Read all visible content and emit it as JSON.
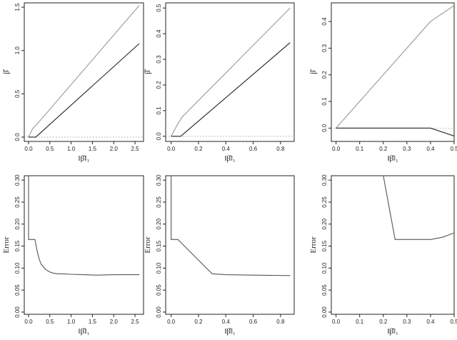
{
  "chart_data": [
    {
      "type": "line",
      "ylabel": "β̂",
      "xlabel": "‖β̂‖₁",
      "xlim": [
        -0.1,
        2.7
      ],
      "ylim": [
        -0.05,
        1.55
      ],
      "xticks": [
        "0.0",
        "0.5",
        "1.0",
        "1.5",
        "2.0",
        "2.5"
      ],
      "yticks": [
        "0.0",
        "0.5",
        "1.0",
        "1.5"
      ],
      "zero_line": true,
      "series": [
        {
          "color": "#999999",
          "x": [
            0.0,
            0.1,
            0.2,
            2.6
          ],
          "y": [
            0.0,
            0.1,
            0.15,
            1.52
          ]
        },
        {
          "color": "#222222",
          "x": [
            0.0,
            0.17,
            2.6
          ],
          "y": [
            0.0,
            0.0,
            1.08
          ]
        }
      ]
    },
    {
      "type": "line",
      "ylabel": "β̂",
      "xlabel": "‖β̂‖₁",
      "xlim": [
        -0.04,
        0.9
      ],
      "ylim": [
        -0.02,
        0.52
      ],
      "xticks": [
        "0.0",
        "0.2",
        "0.4",
        "0.6",
        "0.8"
      ],
      "yticks": [
        "0.0",
        "0.1",
        "0.2",
        "0.3",
        "0.4",
        "0.5"
      ],
      "zero_line": true,
      "series": [
        {
          "color": "#999999",
          "x": [
            0.0,
            0.04,
            0.08,
            0.87
          ],
          "y": [
            0.0,
            0.04,
            0.075,
            0.5
          ]
        },
        {
          "color": "#222222",
          "x": [
            0.0,
            0.07,
            0.87
          ],
          "y": [
            0.0,
            0.0,
            0.365
          ]
        }
      ]
    },
    {
      "type": "line",
      "ylabel": "β̂",
      "xlabel": "‖β̂‖₁",
      "xlim": [
        -0.02,
        0.5
      ],
      "ylim": [
        -0.05,
        0.47
      ],
      "xticks": [
        "0.0",
        "0.1",
        "0.2",
        "0.3",
        "0.4",
        "0.5"
      ],
      "yticks": [
        "0.0",
        "0.1",
        "0.2",
        "0.3",
        "0.4"
      ],
      "zero_line": true,
      "series": [
        {
          "color": "#999999",
          "x": [
            0.0,
            0.4,
            0.5
          ],
          "y": [
            0.0,
            0.4,
            0.46
          ]
        },
        {
          "color": "#222222",
          "x": [
            0.0,
            0.4,
            0.5
          ],
          "y": [
            0.0,
            0.0,
            -0.03
          ]
        }
      ]
    },
    {
      "type": "line",
      "ylabel": "Error",
      "xlabel": "‖β̂‖₁",
      "xlim": [
        -0.1,
        2.7
      ],
      "ylim": [
        -0.005,
        0.31
      ],
      "xticks": [
        "0.0",
        "0.5",
        "1.0",
        "1.5",
        "2.0",
        "2.5"
      ],
      "yticks": [
        "0.00",
        "0.05",
        "0.10",
        "0.15",
        "0.20",
        "0.25",
        "0.30"
      ],
      "zero_line": false,
      "series": [
        {
          "color": "#555555",
          "x": [
            0.0,
            0.0,
            0.15,
            0.2,
            0.25,
            0.3,
            0.4,
            0.5,
            0.6,
            0.7,
            0.8,
            1.0,
            1.3,
            1.6,
            2.0,
            2.6
          ],
          "y": [
            0.31,
            0.165,
            0.165,
            0.14,
            0.12,
            0.108,
            0.097,
            0.091,
            0.088,
            0.087,
            0.087,
            0.086,
            0.085,
            0.084,
            0.085,
            0.085
          ]
        }
      ]
    },
    {
      "type": "line",
      "ylabel": "Error",
      "xlabel": "‖β̂‖₁",
      "xlim": [
        -0.04,
        0.9
      ],
      "ylim": [
        -0.005,
        0.31
      ],
      "xticks": [
        "0.0",
        "0.2",
        "0.4",
        "0.6",
        "0.8"
      ],
      "yticks": [
        "0.00",
        "0.05",
        "0.10",
        "0.15",
        "0.20",
        "0.25",
        "0.30"
      ],
      "zero_line": false,
      "series": [
        {
          "color": "#555555",
          "x": [
            0.0,
            0.0,
            0.05,
            0.3,
            0.4,
            0.6,
            0.87
          ],
          "y": [
            0.31,
            0.165,
            0.165,
            0.087,
            0.085,
            0.084,
            0.083
          ]
        }
      ]
    },
    {
      "type": "line",
      "ylabel": "Error",
      "xlabel": "‖β̂‖₁",
      "xlim": [
        -0.02,
        0.5
      ],
      "ylim": [
        -0.005,
        0.31
      ],
      "xticks": [
        "0.0",
        "0.1",
        "0.2",
        "0.3",
        "0.4",
        "0.5"
      ],
      "yticks": [
        "0.00",
        "0.05",
        "0.10",
        "0.15",
        "0.20",
        "0.25",
        "0.30"
      ],
      "zero_line": false,
      "series": [
        {
          "color": "#555555",
          "x": [
            0.2,
            0.25,
            0.4,
            0.45,
            0.5
          ],
          "y": [
            0.31,
            0.165,
            0.165,
            0.17,
            0.18
          ]
        }
      ]
    }
  ]
}
